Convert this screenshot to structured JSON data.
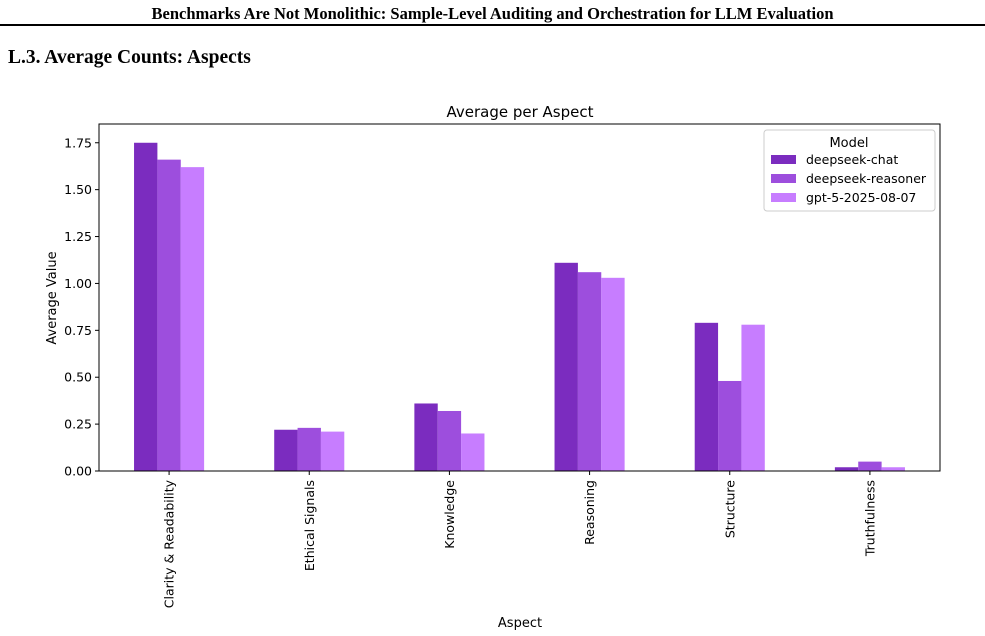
{
  "document": {
    "running_header": "Benchmarks Are Not Monolithic: Sample-Level Auditing and Orchestration for LLM Evaluation",
    "section_title": "L.3. Average Counts: Aspects"
  },
  "chart_data": {
    "type": "bar",
    "title": "Average per Aspect",
    "xlabel": "Aspect",
    "ylabel": "Average Value",
    "ylim": [
      0,
      1.85
    ],
    "yticks": [
      "0.00",
      "0.25",
      "0.50",
      "0.75",
      "1.00",
      "1.25",
      "1.50",
      "1.75"
    ],
    "categories": [
      "Clarity & Readability",
      "Ethical Signals",
      "Knowledge",
      "Reasoning",
      "Structure",
      "Truthfulness"
    ],
    "legend": {
      "title": "Model",
      "placement": "top-right"
    },
    "grid": false,
    "series": [
      {
        "name": "deepseek-chat",
        "color": "#7b2cbf",
        "values": [
          1.75,
          0.22,
          0.36,
          1.11,
          0.79,
          0.02
        ]
      },
      {
        "name": "deepseek-reasoner",
        "color": "#9d4edd",
        "values": [
          1.66,
          0.23,
          0.32,
          1.06,
          0.48,
          0.05
        ]
      },
      {
        "name": "gpt-5-2025-08-07",
        "color": "#c77dff",
        "values": [
          1.62,
          0.21,
          0.2,
          1.03,
          0.78,
          0.02
        ]
      }
    ]
  }
}
